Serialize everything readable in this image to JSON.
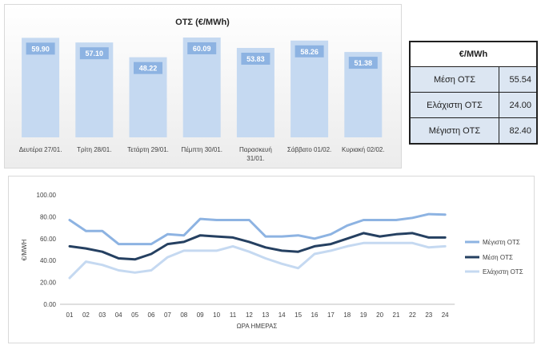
{
  "bar_chart": {
    "title": "ΟΤΣ (€/MWh)"
  },
  "line_chart": {
    "xlabel": "ΩΡΑ ΗΜΕΡΑΣ",
    "ylabel": "€/MWH"
  },
  "stats_table": {
    "header": "€/MWh",
    "rows": [
      {
        "label": "Μέση ΟΤΣ",
        "value": "55.54"
      },
      {
        "label": "Ελάχιστη ΟΤΣ",
        "value": "24.00"
      },
      {
        "label": "Μέγιστη ΟΤΣ",
        "value": "82.40"
      }
    ]
  },
  "colors": {
    "bar_fill": "#c5d9f1",
    "label_box": "#8db3e2",
    "max_series": "#8db3e2",
    "mean_series": "#254061",
    "min_series": "#c5d9f1"
  },
  "chart_data": [
    {
      "type": "bar",
      "title": "ΟΤΣ (€/MWh)",
      "categories": [
        "Δευτέρα 27/01.",
        "Τρίτη 28/01.",
        "Τετάρτη 29/01.",
        "Πέμπτη 30/01.",
        "Παρασκευή 31/01.",
        "Σάββατο 01/02.",
        "Κυριακή 02/02."
      ],
      "values": [
        59.9,
        57.1,
        48.22,
        60.09,
        53.83,
        58.26,
        51.38
      ],
      "value_labels": [
        "59.90",
        "57.10",
        "48.22",
        "60.09",
        "53.83",
        "58.26",
        "51.38"
      ],
      "ylim": [
        0,
        62
      ],
      "grid": false,
      "legend": "none"
    },
    {
      "type": "line",
      "title": "",
      "xlabel": "ΩΡΑ ΗΜΕΡΑΣ",
      "ylabel": "€/MWH",
      "x": [
        "01",
        "02",
        "03",
        "04",
        "05",
        "06",
        "07",
        "08",
        "09",
        "10",
        "11",
        "12",
        "13",
        "14",
        "15",
        "16",
        "17",
        "18",
        "19",
        "20",
        "21",
        "22",
        "23",
        "24"
      ],
      "ylim": [
        0,
        100
      ],
      "yticks": [
        "0.00",
        "20.00",
        "40.00",
        "60.00",
        "80.00",
        "100.00"
      ],
      "legend": "right",
      "grid": false,
      "series": [
        {
          "name": "Μέγιστη ΟΤΣ",
          "values": [
            77,
            67,
            67,
            55,
            55,
            55,
            64,
            63,
            78,
            77,
            77,
            77,
            62,
            62,
            63,
            60,
            64,
            72,
            77,
            77,
            77,
            79,
            82.4,
            82
          ]
        },
        {
          "name": "Μέση ΟΤΣ",
          "values": [
            53,
            51,
            48,
            42,
            41,
            46,
            55,
            57,
            63,
            62,
            61,
            57,
            52,
            49,
            48,
            53,
            55,
            60,
            65,
            62,
            64,
            65,
            61,
            61
          ]
        },
        {
          "name": "Ελάχιστη ΟΤΣ",
          "values": [
            24,
            39,
            36,
            31,
            29,
            31,
            43,
            49,
            49,
            49,
            53,
            48,
            42,
            37,
            33,
            46,
            49,
            53,
            56,
            56,
            56,
            56,
            52,
            53
          ]
        }
      ]
    }
  ]
}
